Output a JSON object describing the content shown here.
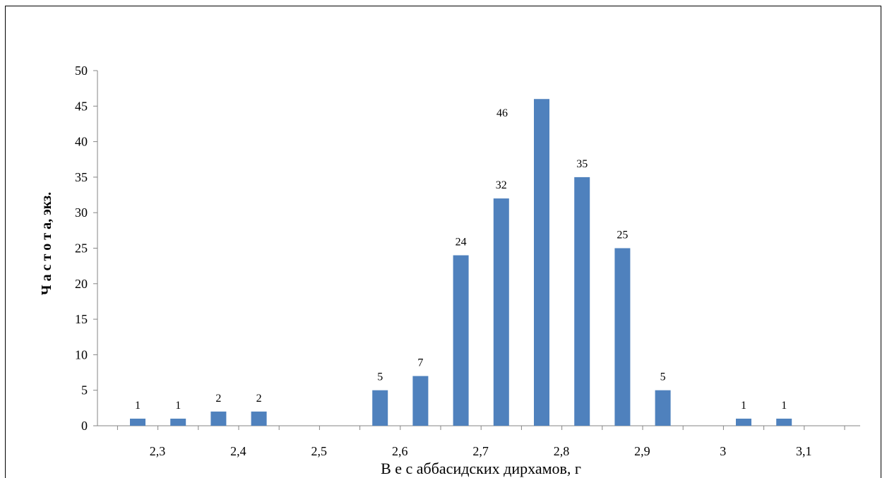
{
  "chart_data": {
    "type": "bar",
    "xlabel": "В е с  аббасидских дирхамов,  г",
    "ylabel": "Ч а с т о т а,  экз.",
    "ylim": [
      0,
      50
    ],
    "yticks": [
      "0",
      "5",
      "10",
      "15",
      "20",
      "25",
      "30",
      "35",
      "40",
      "45",
      "50"
    ],
    "xtick_labels": [
      "2,3",
      "2,4",
      "2,5",
      "2,6",
      "2,7",
      "2,8",
      "2,9",
      "3",
      "3,1"
    ],
    "categories": [
      "2,3",
      "2,35",
      "2,4",
      "2,45",
      "2,5",
      "2,55",
      "2,6",
      "2,65",
      "2,7",
      "2,75",
      "2,8",
      "2,85",
      "2,9",
      "2,95",
      "3",
      "3,05",
      "3,1"
    ],
    "values": [
      1,
      1,
      2,
      2,
      null,
      null,
      5,
      7,
      24,
      32,
      46,
      35,
      25,
      5,
      null,
      1,
      1
    ],
    "data_labels": [
      "1",
      "1",
      "2",
      "2",
      "",
      "",
      "5",
      "7",
      "24",
      "32",
      "46",
      "35",
      "25",
      "5",
      "",
      "1",
      "1"
    ],
    "bar_color": "#4f81bd",
    "grid": false,
    "legend": "none"
  }
}
